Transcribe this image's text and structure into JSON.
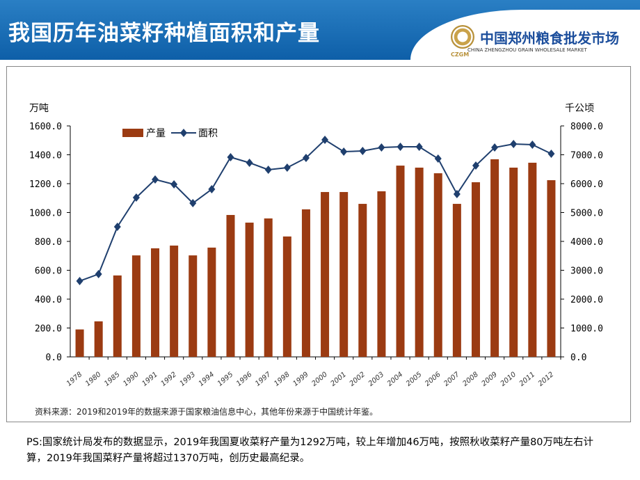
{
  "header": {
    "title": "我国历年油菜籽种植面积和产量",
    "logo_cn": "中国郑州粮食批发市场",
    "logo_en": "CHINA ZHENGZHOU GRAIN WHOLESALE MARKET",
    "logo_abbr": "CZGM"
  },
  "chart_data": {
    "type": "bar+line",
    "categories": [
      "1978",
      "1980",
      "1985",
      "1990",
      "1991",
      "1992",
      "1993",
      "1994",
      "1995",
      "1996",
      "1997",
      "1998",
      "1999",
      "2000",
      "2001",
      "2002",
      "2003",
      "2004",
      "2005",
      "2006",
      "2007",
      "2008",
      "2009",
      "2010",
      "2011",
      "2012"
    ],
    "series": [
      {
        "name": "产量",
        "type": "bar",
        "axis": "left",
        "color": "#9b3b12",
        "values": [
          190,
          246,
          564,
          703,
          752,
          771,
          703,
          757,
          983,
          930,
          959,
          834,
          1022,
          1142,
          1142,
          1060,
          1147,
          1325,
          1311,
          1272,
          1060,
          1210,
          1369,
          1311,
          1345,
          1224
        ]
      },
      {
        "name": "面积",
        "type": "line",
        "axis": "right",
        "color": "#1f3f6e",
        "values": [
          2627,
          2867,
          4506,
          5518,
          6145,
          5976,
          5325,
          5807,
          6916,
          6723,
          6482,
          6554,
          6892,
          7518,
          7108,
          7133,
          7253,
          7277,
          7277,
          6867,
          5639,
          6627,
          7253,
          7373,
          7349,
          7036
        ]
      }
    ],
    "ylabel_left": "万吨",
    "ylabel_right": "千公顷",
    "ylim_left": [
      0,
      1600
    ],
    "ylim_right": [
      0,
      8000
    ],
    "yticks_left": [
      "0.0",
      "200.0",
      "400.0",
      "600.0",
      "800.0",
      "1000.0",
      "1200.0",
      "1400.0",
      "1600.0"
    ],
    "yticks_right": [
      "0.0",
      "1000.0",
      "2000.0",
      "3000.0",
      "4000.0",
      "5000.0",
      "6000.0",
      "7000.0",
      "8000.0"
    ],
    "grid": false,
    "legend": "top-left"
  },
  "source": "资料来源：2019和2019年的数据来源于国家粮油信息中心，其他年份来源于中国统计年鉴。",
  "ps": "PS:国家统计局发布的数据显示，2019年我国夏收菜籽产量为1292万吨，较上年增加46万吨，按照秋收菜籽产量80万吨左右计算，2019年我国菜籽产量将超过1370万吨，创历史最高纪录。"
}
